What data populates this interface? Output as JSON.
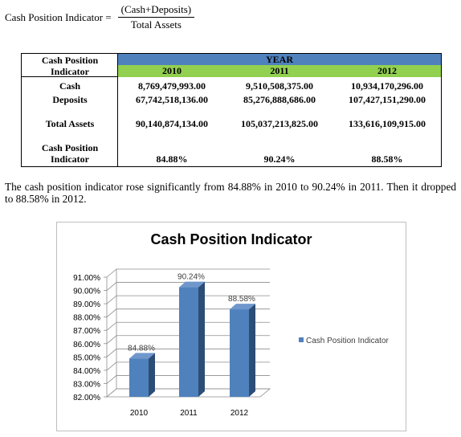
{
  "formula": {
    "lhs": "Cash Position Indicator =",
    "numerator": "(Cash+Deposits)",
    "denominator": "Total Assets"
  },
  "table": {
    "corner_label_1": "Cash Position",
    "corner_label_2": "Indicator",
    "year_header": "YEAR",
    "years": [
      "2010",
      "2011",
      "2012"
    ],
    "rows": [
      {
        "label": "Cash",
        "values": [
          "8,769,479,993.00",
          "9,510,508,375.00",
          "10,934,170,296.00"
        ]
      },
      {
        "label": "Deposits",
        "values": [
          "67,742,518,136.00",
          "85,276,888,686.00",
          "107,427,151,290.00"
        ]
      },
      {
        "label": "Total Assets",
        "values": [
          "90,140,874,134.00",
          "105,037,213,825.00",
          "133,616,109,915.00"
        ]
      },
      {
        "label": "Cash Position Indicator",
        "label_line1": "Cash Position",
        "label_line2": "Indicator",
        "values": [
          "84.88%",
          "90.24%",
          "88.58%"
        ]
      }
    ]
  },
  "paragraph": "The cash position indicator rose significantly from 84.88% in 2010 to 90.24% in 2011. Then it dropped to 88.58% in 2012.",
  "chart_data": {
    "type": "bar",
    "title": "Cash Position Indicator",
    "categories": [
      "2010",
      "2011",
      "2012"
    ],
    "series": [
      {
        "name": "Cash Position Indicator",
        "values": [
          84.88,
          90.24,
          88.58
        ],
        "labels": [
          "84.88%",
          "90.24%",
          "88.58%"
        ]
      }
    ],
    "y_ticks": [
      "82.00%",
      "83.00%",
      "84.00%",
      "85.00%",
      "86.00%",
      "87.00%",
      "88.00%",
      "89.00%",
      "90.00%",
      "91.00%"
    ],
    "ylim": [
      82,
      91
    ],
    "grid": true,
    "legend_position": "right",
    "bar_color": "#4f81bd"
  }
}
